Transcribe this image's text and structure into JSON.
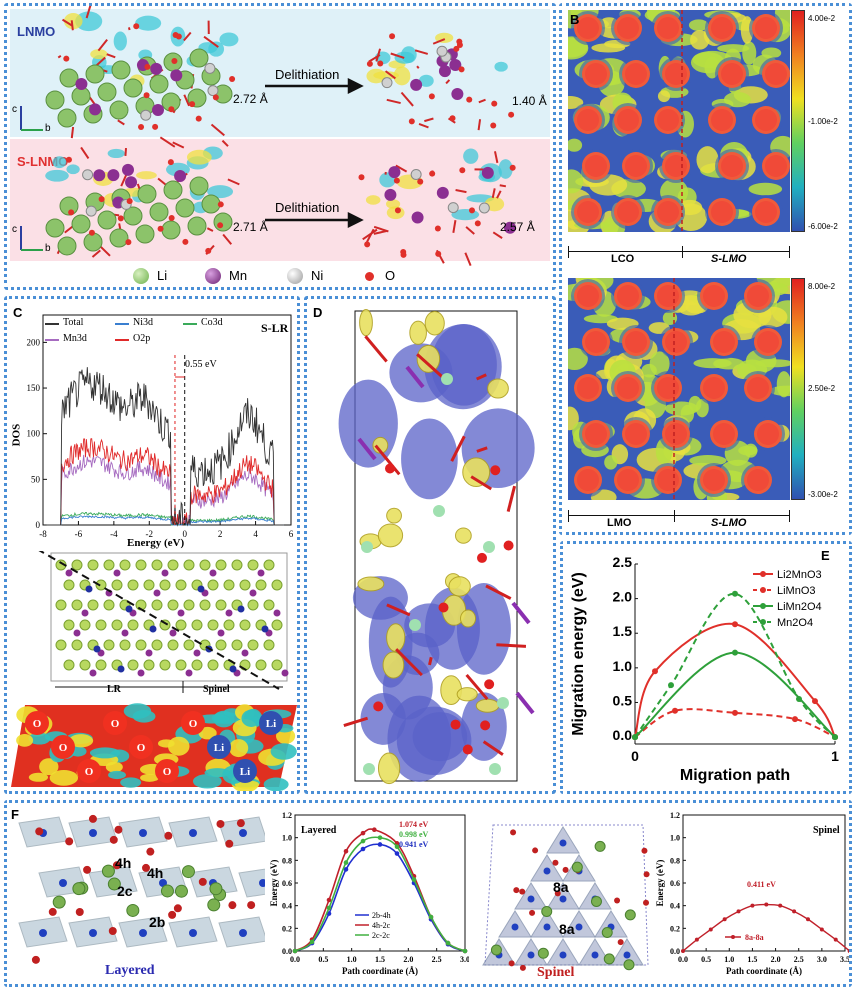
{
  "panel_a": {
    "label": "A",
    "rows": [
      {
        "name": "LNMO",
        "color": "#2a3fa0",
        "bg": "#dff1f8",
        "bond_left": "2.72 Å",
        "bond_right": "1.40 Å",
        "arrow": "Delithiation"
      },
      {
        "name": "S-LNMO",
        "color": "#e03030",
        "bg": "#fbe0e6",
        "bond_left": "2.71 Å",
        "bond_right": "2.57 Å",
        "arrow": "Delithiation"
      }
    ],
    "axis_c": "c",
    "axis_b": "b",
    "legend": [
      {
        "label": "Li",
        "color": "#8cc36a"
      },
      {
        "label": "Mn",
        "color": "#8b2f91"
      },
      {
        "label": "Ni",
        "color": "#c8c8c8"
      },
      {
        "label": "O",
        "color": "#e0302a"
      }
    ]
  },
  "panel_b": {
    "label": "B",
    "top": {
      "left": "LCO",
      "right": "S-LMO",
      "ticks": [
        "4.00e-2",
        "-1.00e-2",
        "-6.00e-2"
      ]
    },
    "bottom": {
      "left": "LMO",
      "right": "S-LMO",
      "ticks": [
        "8.00e-2",
        "2.50e-2",
        "-3.00e-2"
      ]
    }
  },
  "panel_c": {
    "label": "C",
    "tag": "S-LR",
    "ylabel": "DOS",
    "xlabel": "Energy (eV)",
    "gap": "0.55 eV",
    "xticks": [
      "-8",
      "-6",
      "-4",
      "-2",
      "0",
      "2",
      "4",
      "6"
    ],
    "yticks": [
      "0",
      "50",
      "100",
      "150",
      "200"
    ],
    "legend": [
      {
        "label": "Total",
        "color": "#333333"
      },
      {
        "label": "Ni3d",
        "color": "#3a7fd0"
      },
      {
        "label": "Co3d",
        "color": "#3aaa5a"
      },
      {
        "label": "Mn3d",
        "color": "#a66bc0"
      },
      {
        "label": "O2p",
        "color": "#e02a2a"
      }
    ],
    "region_left": "LR",
    "region_right": "Spinel",
    "contour_labels": [
      "O",
      "O",
      "O",
      "O",
      "O",
      "O",
      "O",
      "Li",
      "Li",
      "Li"
    ]
  },
  "panel_d": {
    "label": "D"
  },
  "chart_data": [
    {
      "type": "line",
      "id": "E",
      "xlabel": "Migration path",
      "ylabel": "Migration energy (eV)",
      "xlim": [
        0,
        1
      ],
      "ylim": [
        -0.1,
        2.5
      ],
      "xticks": [
        "0",
        "1"
      ],
      "yticks": [
        "0.0",
        "0.5",
        "1.0",
        "1.5",
        "2.0",
        "2.5"
      ],
      "legend": "top-right",
      "series": [
        {
          "name": "Li2MnO3",
          "color": "#e0302a",
          "dash": false,
          "x": [
            0,
            0.1,
            0.5,
            0.9,
            1
          ],
          "y": [
            0,
            0.95,
            1.63,
            0.52,
            0
          ]
        },
        {
          "name": "LiMnO3",
          "color": "#e0302a",
          "dash": true,
          "x": [
            0,
            0.2,
            0.5,
            0.8,
            1
          ],
          "y": [
            0,
            0.38,
            0.35,
            0.26,
            0
          ]
        },
        {
          "name": "LiMn2O4",
          "color": "#2ea03a",
          "dash": false,
          "x": [
            0,
            0.5,
            1
          ],
          "y": [
            0,
            1.22,
            0
          ]
        },
        {
          "name": "Mn2O4",
          "color": "#2ea03a",
          "dash": true,
          "x": [
            0,
            0.18,
            0.5,
            0.82,
            1
          ],
          "y": [
            0,
            0.75,
            2.07,
            0.55,
            0
          ]
        }
      ]
    },
    {
      "type": "line",
      "id": "F-layered",
      "title": "Layered",
      "xlabel": "Path coordinate (Å)",
      "ylabel": "Energy (eV)",
      "xlim": [
        0,
        3
      ],
      "ylim": [
        0,
        1.2
      ],
      "xticks": [
        "0.0",
        "0.5",
        "1.0",
        "1.5",
        "2.0",
        "2.5",
        "3.0"
      ],
      "yticks": [
        "0.0",
        "0.2",
        "0.4",
        "0.6",
        "0.8",
        "1.0",
        "1.2"
      ],
      "annotations": [
        {
          "text": "1.074 eV",
          "color": "#c0202a"
        },
        {
          "text": "0.998 eV",
          "color": "#40b040"
        },
        {
          "text": "0.941 eV",
          "color": "#2030c0"
        }
      ],
      "series": [
        {
          "name": "2b-4h",
          "color": "#2030d0",
          "x": [
            0,
            0.3,
            0.6,
            0.9,
            1.2,
            1.5,
            1.8,
            2.1,
            2.4,
            2.7,
            3.0
          ],
          "y": [
            0,
            0.07,
            0.33,
            0.72,
            0.9,
            0.94,
            0.86,
            0.6,
            0.28,
            0.06,
            0
          ]
        },
        {
          "name": "4h-2c",
          "color": "#c0202a",
          "x": [
            0,
            0.3,
            0.6,
            0.9,
            1.2,
            1.4,
            1.8,
            2.1,
            2.4,
            2.7,
            3.0
          ],
          "y": [
            0,
            0.1,
            0.45,
            0.88,
            1.04,
            1.07,
            0.95,
            0.66,
            0.3,
            0.07,
            0
          ]
        },
        {
          "name": "2c-2c",
          "color": "#40b040",
          "x": [
            0,
            0.3,
            0.6,
            0.9,
            1.2,
            1.5,
            1.8,
            2.1,
            2.4,
            2.7,
            3.0
          ],
          "y": [
            0,
            0.08,
            0.38,
            0.78,
            0.97,
            1.0,
            0.92,
            0.63,
            0.3,
            0.07,
            0
          ]
        }
      ]
    },
    {
      "type": "line",
      "id": "F-spinel",
      "title": "Spinel",
      "xlabel": "Path coordinate (Å)",
      "ylabel": "Energy (eV)",
      "xlim": [
        0,
        3.5
      ],
      "ylim": [
        0,
        1.2
      ],
      "xticks": [
        "0.0",
        "0.5",
        "1.0",
        "1.5",
        "2.0",
        "2.5",
        "3.0",
        "3.5"
      ],
      "yticks": [
        "0.0",
        "0.2",
        "0.4",
        "0.6",
        "0.8",
        "1.0",
        "1.2"
      ],
      "annotations": [
        {
          "text": "0.411 eV",
          "color": "#c0202a"
        }
      ],
      "series": [
        {
          "name": "8a-8a",
          "color": "#c0202a",
          "x": [
            0,
            0.3,
            0.6,
            0.9,
            1.2,
            1.5,
            1.8,
            2.1,
            2.4,
            2.7,
            3.0,
            3.3,
            3.6
          ],
          "y": [
            0,
            0.1,
            0.19,
            0.28,
            0.35,
            0.4,
            0.41,
            0.4,
            0.35,
            0.28,
            0.19,
            0.1,
            0
          ]
        }
      ]
    }
  ],
  "panel_e": {
    "label": "E"
  },
  "panel_f": {
    "label": "F",
    "layered_caption": "Layered",
    "spinel_caption": "Spinel",
    "sites_layered": [
      "4h",
      "4h",
      "2c",
      "2b"
    ],
    "sites_spinel": [
      "8a",
      "8a"
    ]
  }
}
